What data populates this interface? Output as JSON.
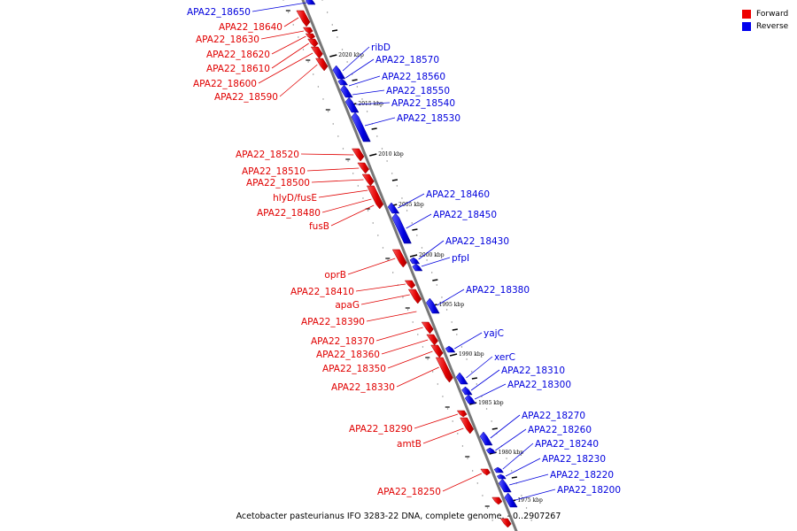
{
  "legend": [
    {
      "label": "Forward",
      "color": "#ee0000"
    },
    {
      "label": "Reverse",
      "color": "#0000ee"
    }
  ],
  "caption": "Acetobacter pasteurianus IFO 3283-22 DNA, complete genome. - 0..2907267",
  "ticks": [
    "2020 kbp",
    "2015 kbp",
    "2010 kbp",
    "2005 kbp",
    "2000 kbp",
    "1995 kbp",
    "1990 kbp",
    "1985 kbp",
    "1980 kbp",
    "1975 kbp"
  ],
  "forward_labels": [
    "APA22_18640",
    "APA22_18630",
    "APA22_18620",
    "APA22_18610",
    "APA22_18600",
    "APA22_18590",
    "APA22_18520",
    "APA22_18510",
    "APA22_18500",
    "hlyD/fusE",
    "APA22_18480",
    "fusB",
    "oprB",
    "APA22_18410",
    "apaG",
    "APA22_18390",
    "APA22_18370",
    "APA22_18360",
    "APA22_18350",
    "APA22_18330",
    "APA22_18290",
    "amtB",
    "APA22_18250"
  ],
  "reverse_labels": [
    "APA22_18650",
    "ribD",
    "APA22_18570",
    "APA22_18560",
    "APA22_18550",
    "APA22_18540",
    "APA22_18530",
    "APA22_18460",
    "APA22_18450",
    "APA22_18430",
    "pfpI",
    "APA22_18380",
    "yajC",
    "xerC",
    "APA22_18310",
    "APA22_18300",
    "APA22_18270",
    "APA22_18260",
    "APA22_18240",
    "APA22_18230",
    "APA22_18220",
    "APA22_18200"
  ]
}
